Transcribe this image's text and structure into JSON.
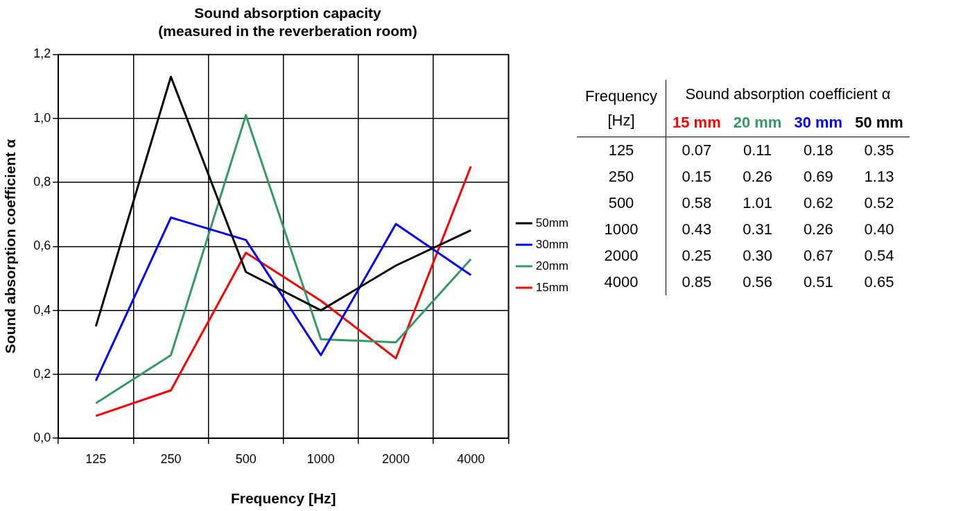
{
  "chart_data": {
    "type": "line",
    "title": "Sound absorption capacity\n(measured in the reverberation room)",
    "xlabel": "Frequency [Hz]",
    "ylabel": "Sound absorption coefficient α",
    "categories": [
      "125",
      "250",
      "500",
      "1000",
      "2000",
      "4000"
    ],
    "series": [
      {
        "name": "50mm",
        "color": "#000000",
        "values": [
          0.35,
          1.13,
          0.52,
          0.4,
          0.54,
          0.65
        ]
      },
      {
        "name": "30mm",
        "color": "#0000ff",
        "values": [
          0.18,
          0.69,
          0.62,
          0.26,
          0.67,
          0.51
        ]
      },
      {
        "name": "20mm",
        "color": "#339966",
        "values": [
          0.11,
          0.26,
          1.01,
          0.31,
          0.3,
          0.56
        ]
      },
      {
        "name": "15mm",
        "color": "#ff0000",
        "values": [
          0.07,
          0.15,
          0.58,
          0.43,
          0.25,
          0.85
        ]
      }
    ],
    "ylim": [
      0,
      1.2
    ],
    "yticks": [
      {
        "value": 0,
        "label": "0,0"
      },
      {
        "value": 0.2,
        "label": "0,2"
      },
      {
        "value": 0.4,
        "label": "0,4"
      },
      {
        "value": 0.6,
        "label": "0,6"
      },
      {
        "value": 0.8,
        "label": "0,8"
      },
      {
        "value": 1.0,
        "label": "1,0"
      },
      {
        "value": 1.2,
        "label": "1,2"
      }
    ],
    "grid": true,
    "legend": "right",
    "marker": "none",
    "line_style": "solid",
    "annotations": [
      "Frequency [Hz]",
      "Sound absorption coefficient α",
      "15 mm",
      "20 mm",
      "30 mm",
      "50 mm",
      "0.07",
      "0.11",
      "0.18",
      "0.35",
      "0.15",
      "0.26",
      "0.69",
      "1.13",
      "0.58",
      "1.01",
      "0.62",
      "0.52",
      "0.43",
      "0.31",
      "0.26",
      "0.40",
      "0.25",
      "0.30",
      "0.67",
      "0.54",
      "0.85",
      "0.56",
      "0.51",
      "0.65"
    ]
  }
}
